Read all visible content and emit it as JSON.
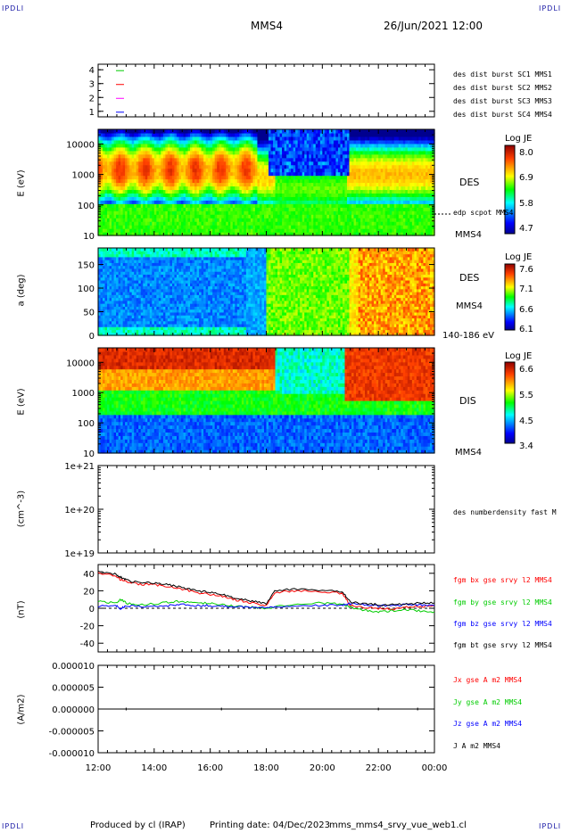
{
  "corner_label": "IPDLI",
  "header": {
    "spacecraft": "MMS4",
    "datetime": "26/Jun/2021 12:00"
  },
  "footer": {
    "produced_by": "Produced by cl (IRAP)",
    "printing_date": "Printing date: 04/Dec/2023",
    "script_name": "mms_mms4_srvy_vue_web1.cl"
  },
  "colors": {
    "mms1": "#0000ff",
    "mms2": "#ff00ff",
    "mms3": "#ff0000",
    "mms4": "#00cc00",
    "bx": "#ff0000",
    "by": "#00cc00",
    "bz": "#0000ff",
    "bt": "#000000",
    "label_blue": "#1a1aa6"
  },
  "chart_data": [
    {
      "type": "line",
      "panel": "burst_availability",
      "yticks": [
        "4",
        "3",
        "2",
        "1"
      ],
      "legend": [
        {
          "name": "des dist burst SC1 MMS1",
          "color": "#0000ff",
          "level": 1
        },
        {
          "name": "des dist burst SC2 MMS2",
          "color": "#ff00ff",
          "level": 2
        },
        {
          "name": "des dist burst SC3 MMS3",
          "color": "#ff0000",
          "level": 3
        },
        {
          "name": "des dist burst SC4 MMS4",
          "color": "#00cc00",
          "level": 4
        }
      ],
      "ylim": [
        0.6,
        4.4
      ]
    },
    {
      "type": "heatmap",
      "panel": "des_energy",
      "ylabel": "E (eV)",
      "yscale": "log",
      "yticks": [
        "10000",
        "1000",
        "100",
        "10"
      ],
      "label": "DES",
      "extra_label": "edp scpot MMS4",
      "unit_label": "MMS4",
      "colorbar": {
        "title": "Log JE",
        "ticks": [
          "8.0",
          "6.9",
          "5.8",
          "4.7"
        ],
        "range": [
          4.7,
          8.0
        ]
      }
    },
    {
      "type": "heatmap",
      "panel": "des_pitch",
      "ylabel": "a (deg)",
      "yticks": [
        "150",
        "100",
        "50",
        "0"
      ],
      "label": "DES",
      "unit_label": "MMS4",
      "range_label": "140-186 eV",
      "colorbar": {
        "title": "Log JE",
        "ticks": [
          "7.6",
          "7.1",
          "6.6",
          "6.1"
        ],
        "range": [
          6.1,
          7.6
        ]
      }
    },
    {
      "type": "heatmap",
      "panel": "dis_energy",
      "ylabel": "E (eV)",
      "yscale": "log",
      "yticks": [
        "10000",
        "1000",
        "100",
        "10"
      ],
      "label": "DIS",
      "unit_label": "MMS4",
      "colorbar": {
        "title": "Log JE",
        "ticks": [
          "6.6",
          "5.5",
          "4.5",
          "3.4"
        ],
        "range": [
          3.4,
          6.6
        ]
      }
    },
    {
      "type": "line",
      "panel": "density",
      "ylabel": "(cm^-3)",
      "yscale": "log",
      "yticks": [
        "1e+21",
        "1e+20",
        "1e+19"
      ],
      "legend": [
        {
          "name": "des numberdensity fast M",
          "color": "#000000"
        }
      ]
    },
    {
      "type": "line",
      "panel": "magnetic_field",
      "ylabel": "(nT)",
      "yticks": [
        "40",
        "20",
        "0",
        "-20",
        "-40"
      ],
      "ylim": [
        -50,
        50
      ],
      "x": [
        12.0,
        12.6,
        12.8,
        13.0,
        13.5,
        14.0,
        14.5,
        15.0,
        15.5,
        16.0,
        16.5,
        17.0,
        17.5,
        18.0,
        18.3,
        19.0,
        20.0,
        20.7,
        21.0,
        21.5,
        22.0,
        22.5,
        23.0,
        23.5,
        24.0
      ],
      "series": [
        {
          "name": "fgm bx gse srvy l2 MMS4",
          "color": "#ff0000",
          "values": [
            40,
            37,
            33,
            30,
            27,
            27,
            25,
            22,
            18,
            16,
            13,
            9,
            6,
            3,
            18,
            20,
            19,
            17,
            3,
            1,
            0,
            -1,
            1,
            2,
            3
          ]
        },
        {
          "name": "fgm by gse srvy l2 MMS4",
          "color": "#00cc00",
          "values": [
            8,
            6,
            10,
            6,
            4,
            5,
            7,
            8,
            6,
            6,
            4,
            2,
            1,
            0,
            2,
            5,
            6,
            5,
            1,
            -2,
            -4,
            -3,
            -2,
            -3,
            -4
          ]
        },
        {
          "name": "fgm bz gse srvy l2 MMS4",
          "color": "#0000ff",
          "values": [
            2,
            4,
            -1,
            3,
            2,
            2,
            3,
            4,
            3,
            3,
            2,
            2,
            1,
            1,
            2,
            3,
            3,
            4,
            5,
            4,
            3,
            3,
            4,
            4,
            3
          ]
        },
        {
          "name": "fgm bt gse srvy l2 MMS4",
          "color": "#000000",
          "values": [
            42,
            39,
            36,
            32,
            29,
            29,
            27,
            24,
            20,
            18,
            15,
            11,
            8,
            5,
            20,
            22,
            21,
            19,
            7,
            5,
            4,
            4,
            5,
            6,
            6
          ]
        }
      ]
    },
    {
      "type": "line",
      "panel": "current_density",
      "ylabel": "(A/m2)",
      "yticks": [
        "0.000010",
        "0.000005",
        "0.000000",
        "-0.000005",
        "-0.000010"
      ],
      "ylim": [
        -1e-05,
        1e-05
      ],
      "series": [
        {
          "name": "Jx gse A m2 MMS4",
          "color": "#ff0000"
        },
        {
          "name": "Jy gse A m2 MMS4",
          "color": "#00cc00"
        },
        {
          "name": "Jz gse A m2 MMS4",
          "color": "#0000ff"
        },
        {
          "name": "J A m2 MMS4",
          "color": "#000000"
        }
      ]
    }
  ],
  "xaxis": {
    "ticks": [
      "12:00",
      "14:00",
      "16:00",
      "18:00",
      "20:00",
      "22:00",
      "00:00"
    ],
    "xlim": [
      12,
      24
    ]
  }
}
